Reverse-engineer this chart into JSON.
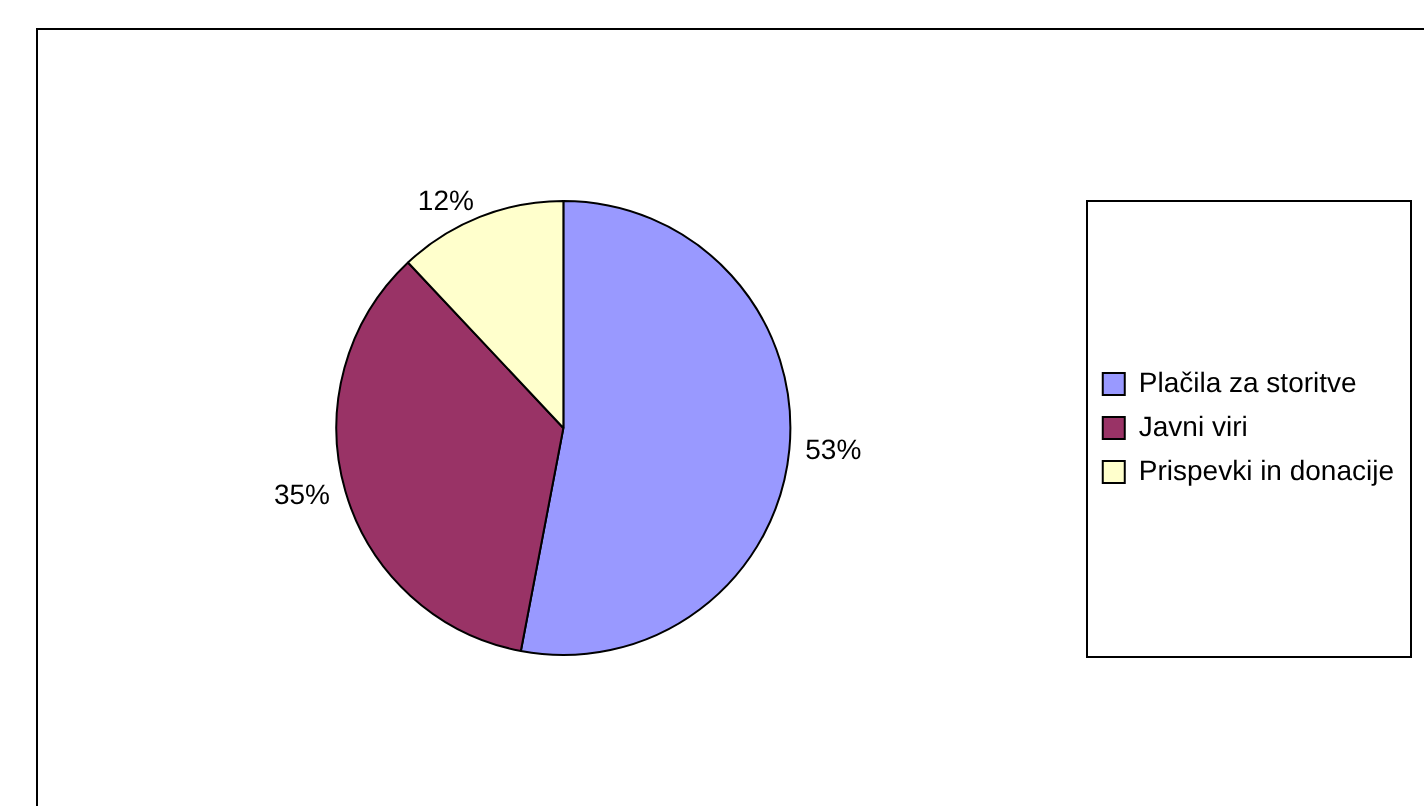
{
  "chart_data": {
    "type": "pie",
    "categories": [
      "Plačila za storitve",
      "Javni viri",
      "Prispevki in donacije"
    ],
    "values": [
      53,
      35,
      12
    ],
    "colors": [
      "#9999ff",
      "#993366",
      "#ffffcc"
    ],
    "value_labels": [
      "53%",
      "35%",
      "12%"
    ],
    "legend": "right"
  }
}
